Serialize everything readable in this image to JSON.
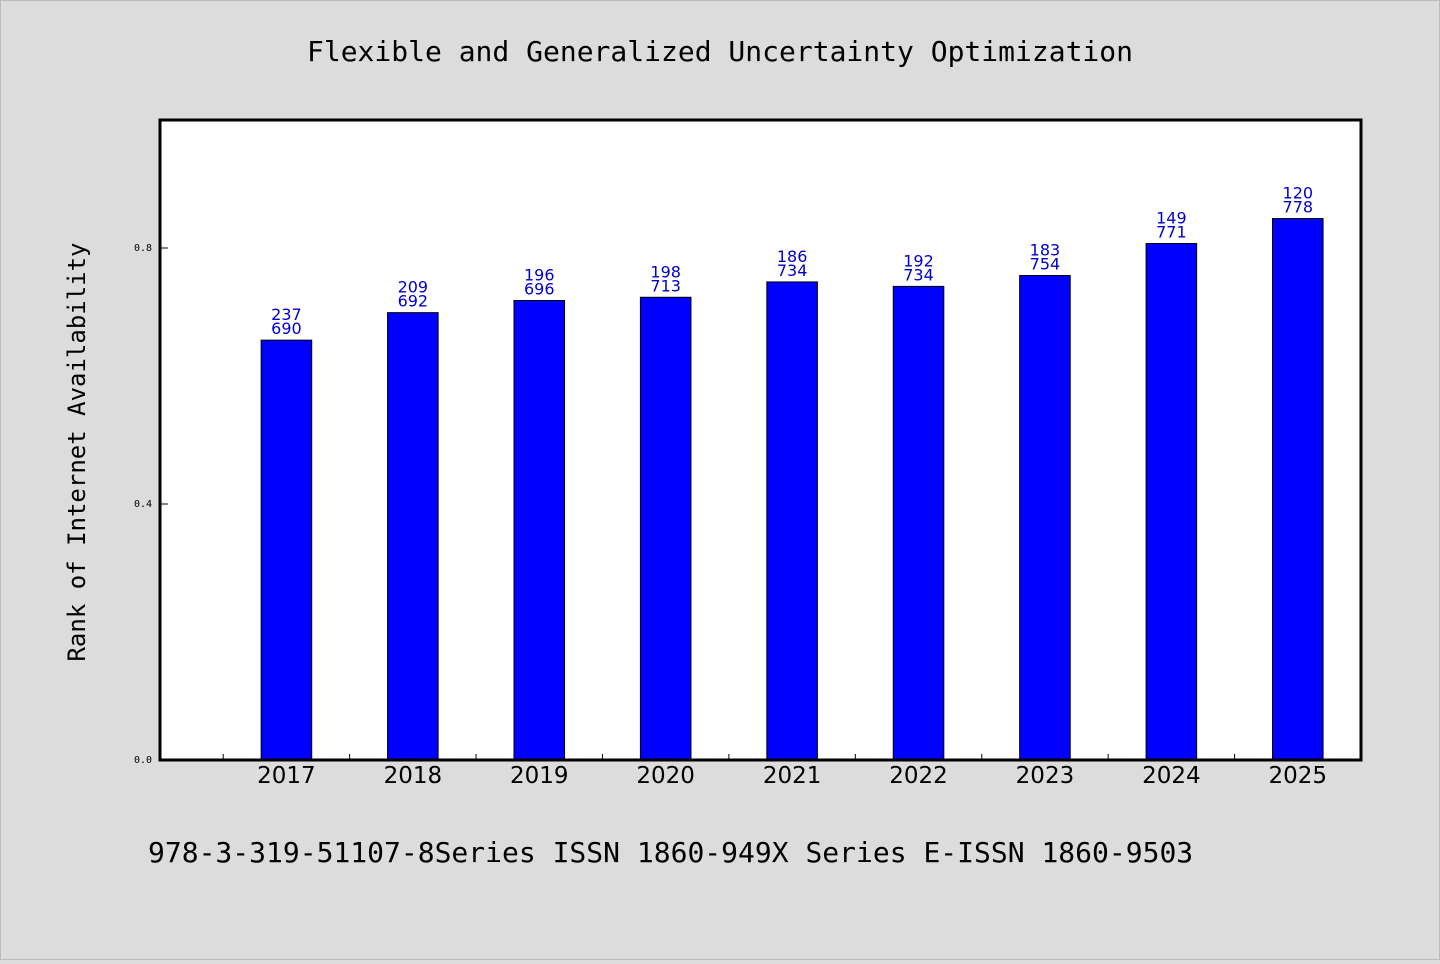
{
  "footer_text": "978-3-319-51107-8Series ISSN 1860-949X Series E-ISSN 1860-9503",
  "colors": {
    "background": "#dcdcdc",
    "plot_background": "#ffffff",
    "bar_fill": "#0000ff",
    "data_label": "#0000cc",
    "axis": "#000000"
  },
  "chart_data": {
    "type": "bar",
    "title": "Flexible and Generalized Uncertainty Optimization",
    "xlabel": "",
    "ylabel": "Rank of Internet Availability",
    "ylim": [
      0,
      1.0
    ],
    "xlim": [
      2016,
      2025.5
    ],
    "yticks": [
      0.0,
      0.4,
      0.8
    ],
    "ytick_labels": [
      "0.0",
      "0.4",
      "0.8"
    ],
    "grid": false,
    "categories": [
      "2017",
      "2018",
      "2019",
      "2020",
      "2021",
      "2022",
      "2023",
      "2024",
      "2025"
    ],
    "values": [
      0.656,
      0.699,
      0.718,
      0.723,
      0.747,
      0.74,
      0.757,
      0.807,
      0.846
    ],
    "data_labels": [
      [
        "237",
        "690"
      ],
      [
        "209",
        "692"
      ],
      [
        "196",
        "696"
      ],
      [
        "198",
        "713"
      ],
      [
        "186",
        "734"
      ],
      [
        "192",
        "734"
      ],
      [
        "183",
        "754"
      ],
      [
        "149",
        "771"
      ],
      [
        "120",
        "778"
      ]
    ]
  }
}
